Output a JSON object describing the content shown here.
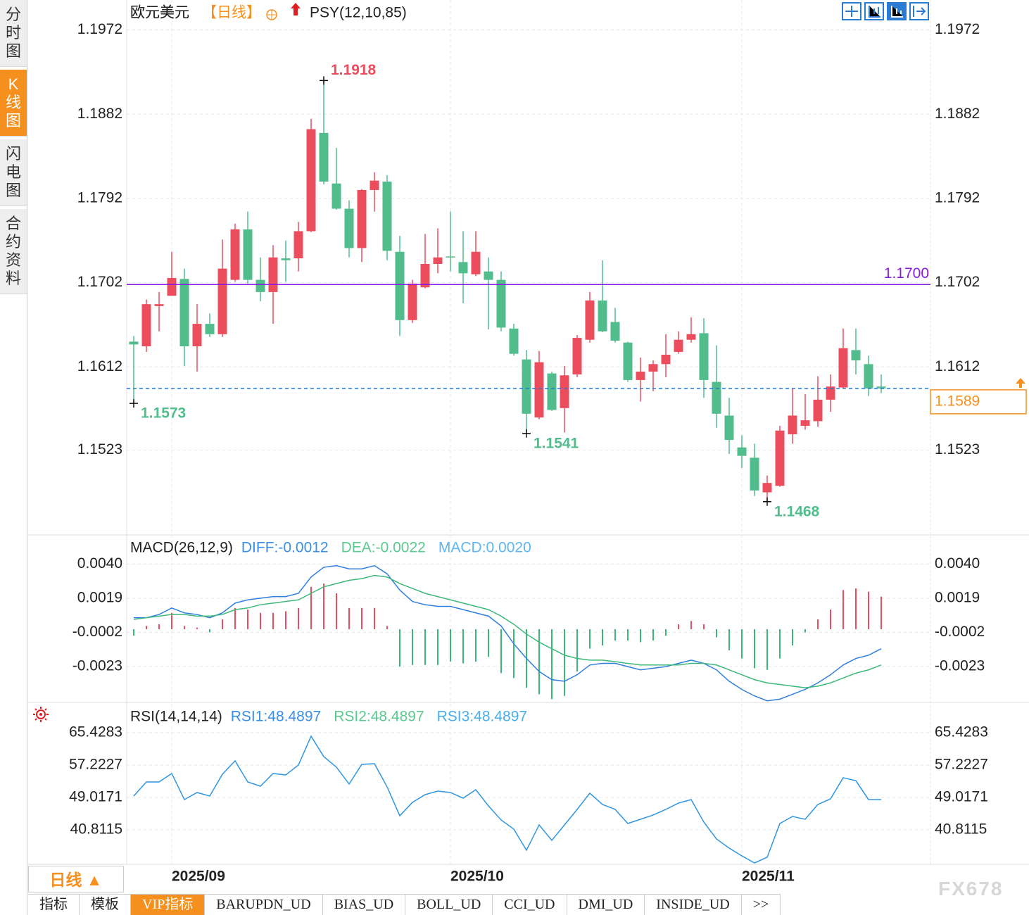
{
  "sidebar": {
    "tabs": [
      "分时图",
      "K线图",
      "闪电图",
      "合约资料"
    ]
  },
  "chart_data": [
    {
      "type": "candlestick",
      "title": "欧元美元",
      "period": "【日线】",
      "indicator": "PSY(12,10,85)",
      "categories": [
        null,
        null,
        null,
        "2025/09",
        null,
        null,
        null,
        null,
        null,
        null,
        null,
        null,
        null,
        null,
        null,
        null,
        null,
        null,
        null,
        null,
        null,
        null,
        null,
        null,
        null,
        "2025/10",
        null,
        null,
        null,
        null,
        null,
        null,
        null,
        null,
        null,
        null,
        null,
        null,
        null,
        null,
        null,
        null,
        null,
        null,
        null,
        null,
        null,
        null,
        "2025/11",
        null,
        null,
        null,
        null,
        null,
        null,
        null,
        null,
        null,
        null,
        null
      ],
      "open": [
        1.1639,
        1.1634,
        1.1677,
        1.1688,
        1.1706,
        1.1634,
        1.1658,
        1.1647,
        1.1705,
        1.1759,
        1.1705,
        1.1692,
        1.1728,
        1.1728,
        1.1757,
        1.1862,
        1.1808,
        1.1781,
        1.1739,
        1.1801,
        1.181,
        1.1735,
        1.1662,
        1.1697,
        1.1722,
        1.173,
        1.1724,
        1.1711,
        1.1714,
        1.1705,
        1.1653,
        1.162,
        1.1558,
        1.1605,
        1.1568,
        1.1604,
        1.1641,
        1.1683,
        1.166,
        1.1638,
        1.1598,
        1.1607,
        1.1615,
        1.1628,
        1.1641,
        1.1648,
        1.1596,
        1.156,
        1.1526,
        1.1515,
        1.1478,
        1.1485,
        1.154,
        1.1549,
        1.1554,
        1.1577,
        1.159,
        1.163,
        1.1615,
        1.1591
      ],
      "high": [
        1.1645,
        1.1684,
        1.1692,
        1.1735,
        1.1717,
        1.1679,
        1.1669,
        1.1748,
        1.1765,
        1.1778,
        1.1729,
        1.1742,
        1.1747,
        1.1767,
        1.1877,
        1.1918,
        1.1846,
        1.179,
        1.1802,
        1.182,
        1.1817,
        1.1752,
        1.1705,
        1.1754,
        1.176,
        1.1778,
        1.1757,
        1.1757,
        1.1729,
        1.1714,
        1.1658,
        1.163,
        1.1629,
        1.1607,
        1.1613,
        1.1646,
        1.1692,
        1.1726,
        1.1675,
        1.1639,
        1.1622,
        1.1619,
        1.1647,
        1.165,
        1.1665,
        1.1664,
        1.1635,
        1.1579,
        1.1539,
        1.153,
        1.1496,
        1.1549,
        1.1589,
        1.1583,
        1.1602,
        1.1604,
        1.1653,
        1.1653,
        1.1624,
        1.1604
      ],
      "low": [
        1.1573,
        1.1628,
        1.165,
        1.1688,
        1.1613,
        1.1607,
        1.1644,
        1.1644,
        1.1703,
        1.1701,
        1.1682,
        1.1658,
        1.1703,
        1.1714,
        1.1756,
        1.1807,
        1.178,
        1.1729,
        1.1724,
        1.1778,
        1.1726,
        1.1645,
        1.1659,
        1.1696,
        1.1712,
        1.1714,
        1.168,
        1.1709,
        1.1652,
        1.165,
        1.1624,
        1.1541,
        1.1556,
        1.1565,
        1.1542,
        1.1601,
        1.1638,
        1.1649,
        1.1638,
        1.1596,
        1.1575,
        1.1586,
        1.1601,
        1.1626,
        1.1638,
        1.1579,
        1.1547,
        1.1519,
        1.1504,
        1.1474,
        1.1468,
        1.1484,
        1.153,
        1.1545,
        1.1548,
        1.1564,
        1.1589,
        1.1604,
        1.1581,
        1.1584
      ],
      "close": [
        1.1636,
        1.1679,
        1.1679,
        1.1707,
        1.1634,
        1.1658,
        1.1647,
        1.1717,
        1.1759,
        1.1705,
        1.1692,
        1.1729,
        1.1726,
        1.1757,
        1.1866,
        1.181,
        1.1781,
        1.1739,
        1.1801,
        1.1811,
        1.1736,
        1.1662,
        1.1701,
        1.1722,
        1.1729,
        1.1729,
        1.1712,
        1.1735,
        1.1705,
        1.1654,
        1.1626,
        1.1562,
        1.1617,
        1.1566,
        1.1603,
        1.1643,
        1.1683,
        1.165,
        1.164,
        1.1598,
        1.1607,
        1.1615,
        1.1625,
        1.1641,
        1.1647,
        1.1598,
        1.1562,
        1.1534,
        1.1517,
        1.148,
        1.1488,
        1.1544,
        1.156,
        1.1555,
        1.1577,
        1.1591,
        1.1632,
        1.1619,
        1.1589,
        1.1589
      ],
      "up_color": "#ec4d5c",
      "down_color": "#52bd8c",
      "ylim": [
        1.1434,
        1.2004
      ],
      "yticks": [
        1.1972,
        1.1882,
        1.1792,
        1.1702,
        1.1612,
        1.1523
      ],
      "grid": true,
      "hlines": [
        {
          "value": 1.17,
          "label": "1.1700",
          "color": "#8a1be0"
        }
      ],
      "last_price": 1.1589,
      "last_price_color": "#1e7be0",
      "last_label_color": "#f5901e",
      "annotations": [
        1.1918,
        1.1573,
        1.1541,
        1.1468
      ]
    },
    {
      "type": "macd",
      "title": "MACD(26,12,9)",
      "legend": [
        "DIFF:-0.0012",
        "DEA:-0.0022",
        "MACD:0.0020"
      ],
      "legend_colors": [
        "#3a8ee6",
        "#5cc98f",
        "#5fb6f0"
      ],
      "series": [
        {
          "color": "#2f7fe0",
          "values": [
            0.0007,
            0.0007,
            0.0009,
            0.0013,
            0.001,
            0.0009,
            0.0007,
            0.001,
            0.0016,
            0.0018,
            0.0019,
            0.002,
            0.002,
            0.0022,
            0.0032,
            0.0038,
            0.0039,
            0.0037,
            0.0037,
            0.0039,
            0.0034,
            0.0024,
            0.0017,
            0.0015,
            0.0014,
            0.0014,
            0.0012,
            0.001,
            0.0008,
            0.0002,
            -0.0009,
            -0.0018,
            -0.0026,
            -0.0031,
            -0.0032,
            -0.0028,
            -0.0022,
            -0.0021,
            -0.0021,
            -0.0023,
            -0.0025,
            -0.0024,
            -0.0023,
            -0.0021,
            -0.0019,
            -0.0021,
            -0.0025,
            -0.0032,
            -0.0037,
            -0.0041,
            -0.0044,
            -0.0043,
            -0.004,
            -0.0037,
            -0.0033,
            -0.0028,
            -0.0022,
            -0.0018,
            -0.0016,
            -0.0012
          ]
        },
        {
          "color": "#3cb878",
          "values": [
            0.0006,
            0.0007,
            0.0008,
            0.0009,
            0.0009,
            0.0008,
            0.0008,
            0.0009,
            0.0012,
            0.0013,
            0.0015,
            0.0016,
            0.0017,
            0.0018,
            0.0022,
            0.0026,
            0.0028,
            0.003,
            0.0031,
            0.0033,
            0.0032,
            0.0028,
            0.0025,
            0.0022,
            0.002,
            0.0018,
            0.0016,
            0.0014,
            0.0012,
            0.0008,
            0.0003,
            -0.0003,
            -0.0008,
            -0.0012,
            -0.0016,
            -0.0018,
            -0.0019,
            -0.0019,
            -0.002,
            -0.0021,
            -0.0022,
            -0.0022,
            -0.0022,
            -0.0022,
            -0.0021,
            -0.0021,
            -0.0022,
            -0.0025,
            -0.0028,
            -0.0031,
            -0.0033,
            -0.0034,
            -0.0035,
            -0.0036,
            -0.0035,
            -0.0033,
            -0.003,
            -0.0027,
            -0.0025,
            -0.0022
          ]
        }
      ],
      "histogram": {
        "up_color": "#ec4d5c",
        "down_color": "#3cb878",
        "values": [
          -0.0004,
          0.0002,
          0.0003,
          0.001,
          0.0002,
          0.0001,
          -0.0002,
          0.0006,
          0.0013,
          0.0012,
          0.001,
          0.001,
          0.0011,
          0.0013,
          0.0026,
          0.0028,
          0.0022,
          0.0013,
          0.0013,
          0.0013,
          0.0002,
          -0.0023,
          -0.0022,
          -0.0022,
          -0.0022,
          -0.002,
          -0.0021,
          -0.002,
          -0.0017,
          -0.0027,
          -0.003,
          -0.0036,
          -0.004,
          -0.0043,
          -0.0041,
          -0.0026,
          -0.0012,
          -0.001,
          -0.0007,
          -0.0007,
          -0.0008,
          -0.0007,
          -0.0004,
          0.0003,
          0.0005,
          0.0003,
          -0.0005,
          -0.0013,
          -0.0018,
          -0.0024,
          -0.0025,
          -0.0018,
          -0.001,
          -0.0002,
          0.0006,
          0.0012,
          0.0024,
          0.0025,
          0.0023,
          0.002
        ]
      },
      "ylim": [
        -0.0045,
        0.0057
      ],
      "yticks": [
        {
          "value": 0.004,
          "label": "0.0040"
        },
        0.0019,
        -0.0002,
        -0.0023
      ],
      "grid": true
    },
    {
      "type": "line",
      "title": "RSI(14,14,14)",
      "legend": [
        "RSI1:48.4897",
        "RSI2:48.4897",
        "RSI3:48.4897"
      ],
      "legend_colors": [
        "#3a8ee6",
        "#5cc98f",
        "#4aaee8"
      ],
      "series": [
        {
          "color": "#2f95e0",
          "values": [
            49.38,
            52.94,
            52.94,
            55.09,
            48.48,
            50.27,
            49.38,
            54.91,
            58.3,
            52.94,
            51.87,
            55.09,
            54.73,
            57.23,
            64.54,
            59.37,
            56.69,
            52.41,
            57.4,
            57.58,
            51.7,
            44.38,
            47.77,
            49.73,
            50.63,
            50.27,
            48.84,
            50.98,
            46.88,
            43.31,
            40.99,
            35.64,
            42.06,
            38.14,
            42.06,
            45.99,
            50.09,
            47.24,
            45.99,
            42.42,
            43.49,
            44.56,
            45.99,
            47.59,
            48.48,
            42.78,
            38.49,
            36.17,
            34.21,
            32.43,
            33.86,
            42.42,
            44.2,
            43.49,
            47.24,
            48.66,
            54.02,
            53.27,
            48.49,
            48.49
          ]
        }
      ],
      "ylim": [
        32.07,
        72.74
      ],
      "yticks": [
        65.4283,
        57.2227,
        49.0171,
        40.8115
      ],
      "grid": true
    }
  ],
  "period_button": "日线",
  "tabs": [
    "指标",
    "模板",
    "VIP指标",
    "BARUPDN_UD",
    "BIAS_UD",
    "BOLL_UD",
    "CCI_UD",
    "DMI_UD",
    "INSIDE_UD",
    ">>"
  ],
  "watermark": "FX678"
}
